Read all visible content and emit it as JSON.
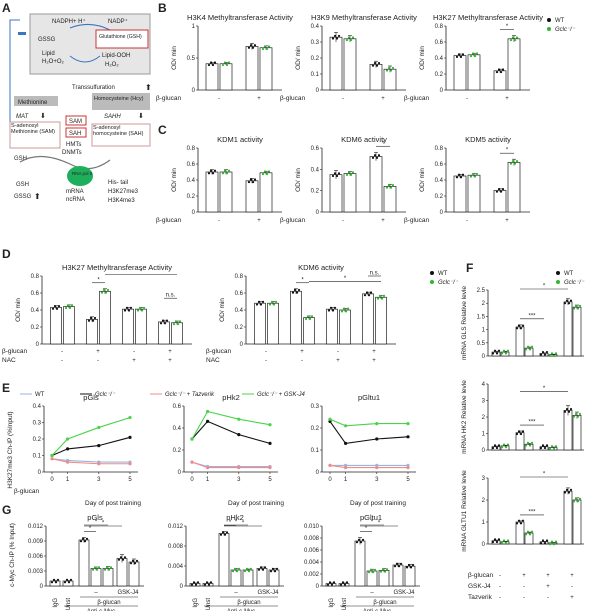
{
  "panel_labels": {
    "A": "A",
    "B": "B",
    "C": "C",
    "D": "D",
    "E": "E",
    "F": "F",
    "G": "G"
  },
  "common": {
    "odmin": "OD/ min",
    "bglucan": "β-glucan",
    "nac": "NAC",
    "ns": "n.s.",
    "star": "*",
    "star3": "***",
    "plus": "+",
    "minus": "-",
    "dash": "–"
  },
  "legend": {
    "wt": "WT",
    "gclc": "Gclc⁻/⁻"
  },
  "schematic": {
    "nadph": "NADPH+ H⁺",
    "nadp": "NADP⁺",
    "gssg": "GSSG",
    "gsh_full": "Glutathione (GSH)",
    "lipid": "Lipid",
    "h2o": "H₂O+O₂",
    "lipid_ooh": "Lipid-OOH",
    "h2o2": "H₂O₂",
    "transsulfuration": "Transsulfuration",
    "methionine": "Methionine",
    "homocysteine": "Homocysteine (Hcy)",
    "mat": "MAT",
    "sahh": "SAHH",
    "sam_box": "S-adenosyl Methionine (SAM)",
    "sah_box": "S-adenosyl homocysteine (SAH)",
    "sam": "SAM",
    "sah": "SAH",
    "hmts": "HMTs",
    "dnmts": "DNMTs",
    "gsh": "GSH",
    "rna": "RNA pol II",
    "mrna": "mRNA",
    "ncrna": "ncRNA",
    "his_tail": "His- tail",
    "h3k27": "H3K27me3",
    "h3k4": "H3K4me3"
  },
  "panel_e": {
    "legend": [
      "WT",
      "Gclc⁻/⁻",
      "Gclc⁻/⁻ + Tazverik",
      "Gclc⁻/⁻ + GSK-J4"
    ],
    "xlabel": "Day of post training",
    "ylabel": "H3K27me3 Ch-IP (%Input)"
  },
  "panel_f": {
    "rows": [
      "β-glucan",
      "GSK-J4",
      "Tazverik"
    ]
  },
  "panel_g": {
    "ylabel": "c-Myc Ch-IP (% Input)",
    "igg": "IgG",
    "unst": "Unst",
    "gskj4": "GSK-J4",
    "anti": "Anti-c-Myc"
  },
  "chart_data": [
    {
      "id": "B1",
      "type": "bar",
      "title": "H3K4 Methyltransferase Activity",
      "ylabel": "OD/ min",
      "ylim": [
        0,
        1.0
      ],
      "ticks": [
        0,
        0.5,
        1.0
      ],
      "categories": [
        "WT -",
        "Gclc⁻/⁻ -",
        "WT +",
        "Gclc⁻/⁻ +"
      ],
      "values": [
        0.41,
        0.41,
        0.68,
        0.66
      ],
      "errors": [
        0.02,
        0.02,
        0.05,
        0.03
      ],
      "xgroup": [
        "-",
        "+"
      ]
    },
    {
      "id": "B2",
      "type": "bar",
      "title": "H3K9 Methyltransferase Activity",
      "ylabel": "OD/ min",
      "ylim": [
        0,
        0.4
      ],
      "ticks": [
        0,
        0.1,
        0.2,
        0.3,
        0.4
      ],
      "categories": [
        "WT -",
        "Gclc⁻/⁻ -",
        "WT +",
        "Gclc⁻/⁻ +"
      ],
      "values": [
        0.33,
        0.32,
        0.16,
        0.13
      ],
      "errors": [
        0.03,
        0.02,
        0.02,
        0.02
      ],
      "xgroup": [
        "-",
        "+"
      ]
    },
    {
      "id": "B3",
      "type": "bar",
      "title": "H3K27 Methyltransferase Activity",
      "ylabel": "OD/ min",
      "ylim": [
        0,
        0.8
      ],
      "ticks": [
        0,
        0.2,
        0.4,
        0.6,
        0.8
      ],
      "categories": [
        "WT -",
        "Gclc⁻/⁻ -",
        "WT +",
        "Gclc⁻/⁻ +"
      ],
      "values": [
        0.43,
        0.44,
        0.24,
        0.64
      ],
      "errors": [
        0.02,
        0.02,
        0.02,
        0.04
      ],
      "xgroup": [
        "-",
        "+"
      ],
      "sig": [
        {
          "a": 2,
          "b": 3,
          "text": "*"
        }
      ]
    },
    {
      "id": "C1",
      "type": "bar",
      "title": "KDM1 activity",
      "ylabel": "OD/ min",
      "ylim": [
        0,
        0.8
      ],
      "ticks": [
        0,
        0.2,
        0.4,
        0.6,
        0.8
      ],
      "categories": [
        "WT -",
        "Gclc⁻/⁻ -",
        "WT +",
        "Gclc⁻/⁻ +"
      ],
      "values": [
        0.5,
        0.5,
        0.39,
        0.49
      ],
      "errors": [
        0.03,
        0.03,
        0.03,
        0.02
      ],
      "xgroup": [
        "-",
        "+"
      ]
    },
    {
      "id": "C2",
      "type": "bar",
      "title": "KDM6 activity",
      "ylabel": "OD/ min",
      "ylim": [
        0,
        0.6
      ],
      "ticks": [
        0,
        0.2,
        0.4,
        0.6
      ],
      "categories": [
        "WT -",
        "Gclc⁻/⁻ -",
        "WT +",
        "Gclc⁻/⁻ +"
      ],
      "values": [
        0.35,
        0.36,
        0.52,
        0.24
      ],
      "errors": [
        0.04,
        0.02,
        0.04,
        0.02
      ],
      "xgroup": [
        "-",
        "+"
      ],
      "sig": [
        {
          "a": 2,
          "b": 3,
          "text": "*"
        }
      ]
    },
    {
      "id": "C3",
      "type": "bar",
      "title": "KDM5 activity",
      "ylabel": "OD/ min",
      "ylim": [
        0,
        0.8
      ],
      "ticks": [
        0,
        0.2,
        0.4,
        0.6,
        0.8
      ],
      "categories": [
        "WT -",
        "Gclc⁻/⁻ -",
        "WT +",
        "Gclc⁻/⁻ +"
      ],
      "values": [
        0.45,
        0.46,
        0.27,
        0.62
      ],
      "errors": [
        0.02,
        0.02,
        0.02,
        0.04
      ],
      "xgroup": [
        "-",
        "+"
      ],
      "sig": [
        {
          "a": 2,
          "b": 3,
          "text": "*"
        }
      ]
    },
    {
      "id": "D1",
      "type": "bar",
      "title": "H3K27 Methyltransferase Activity",
      "ylabel": "OD/ min",
      "ylim": [
        0,
        0.8
      ],
      "ticks": [
        0,
        0.2,
        0.4,
        0.6,
        0.8
      ],
      "values": [
        0.43,
        0.44,
        0.29,
        0.62,
        0.41,
        0.41,
        0.26,
        0.25
      ],
      "errors": [
        0.02,
        0.02,
        0.03,
        0.03,
        0.02,
        0.02,
        0.02,
        0.02
      ],
      "bglucan": [
        "-",
        "+",
        "-",
        "+"
      ],
      "nac": [
        "-",
        "-",
        "+",
        "+"
      ],
      "sig": [
        {
          "a": 2,
          "b": 3,
          "text": "*"
        },
        {
          "a": 3,
          "b": 7,
          "text": "*"
        },
        {
          "a": 6,
          "b": 7,
          "text": "n.s."
        }
      ]
    },
    {
      "id": "D2",
      "type": "bar",
      "title": "KDM6 activity",
      "ylabel": "OD/ min",
      "ylim": [
        0,
        0.8
      ],
      "ticks": [
        0,
        0.2,
        0.4,
        0.6,
        0.8
      ],
      "values": [
        0.48,
        0.48,
        0.62,
        0.31,
        0.41,
        0.4,
        0.59,
        0.55
      ],
      "errors": [
        0.02,
        0.02,
        0.03,
        0.02,
        0.02,
        0.02,
        0.02,
        0.02
      ],
      "bglucan": [
        "-",
        "+",
        "-",
        "+"
      ],
      "nac": [
        "-",
        "-",
        "+",
        "+"
      ],
      "sig": [
        {
          "a": 2,
          "b": 3,
          "text": "*"
        },
        {
          "a": 3,
          "b": 7,
          "text": "*"
        },
        {
          "a": 6,
          "b": 7,
          "text": "n.s."
        }
      ]
    },
    {
      "id": "E1",
      "type": "line",
      "title": "pGls",
      "ylim": [
        0,
        0.4
      ],
      "ticks": [
        0,
        0.1,
        0.2,
        0.3,
        0.4
      ],
      "x": [
        "0",
        "1",
        "3",
        "5"
      ],
      "series": [
        {
          "name": "WT",
          "values": [
            0.08,
            0.07,
            0.06,
            0.06
          ]
        },
        {
          "name": "Gclc⁻/⁻",
          "values": [
            0.1,
            0.14,
            0.16,
            0.21
          ]
        },
        {
          "name": "Gclc⁻/⁻ + Tazverik",
          "values": [
            0.08,
            0.06,
            0.05,
            0.05
          ]
        },
        {
          "name": "Gclc⁻/⁻ + GSK-J4",
          "values": [
            0.1,
            0.2,
            0.27,
            0.33
          ]
        }
      ]
    },
    {
      "id": "E2",
      "type": "line",
      "title": "pHk2",
      "ylim": [
        0,
        0.6
      ],
      "ticks": [
        0,
        0.2,
        0.4,
        0.6
      ],
      "x": [
        "0",
        "1",
        "3",
        "5"
      ],
      "series": [
        {
          "name": "WT",
          "values": [
            0.09,
            0.05,
            0.05,
            0.05
          ]
        },
        {
          "name": "Gclc⁻/⁻",
          "values": [
            0.3,
            0.46,
            0.34,
            0.26
          ]
        },
        {
          "name": "Gclc⁻/⁻ + Tazverik",
          "values": [
            0.09,
            0.04,
            0.04,
            0.04
          ]
        },
        {
          "name": "Gclc⁻/⁻ + GSK-J4",
          "values": [
            0.3,
            0.55,
            0.48,
            0.43
          ]
        }
      ]
    },
    {
      "id": "E3",
      "type": "line",
      "title": "pGltu1",
      "ylim": [
        0,
        0.3
      ],
      "ticks": [
        0,
        0.1,
        0.2,
        0.3
      ],
      "x": [
        "0",
        "1",
        "3",
        "5"
      ],
      "series": [
        {
          "name": "WT",
          "values": [
            0.03,
            0.03,
            0.03,
            0.03
          ]
        },
        {
          "name": "Gclc⁻/⁻",
          "values": [
            0.23,
            0.13,
            0.15,
            0.16
          ]
        },
        {
          "name": "Gclc⁻/⁻ + Tazverik",
          "values": [
            0.03,
            0.02,
            0.02,
            0.02
          ]
        },
        {
          "name": "Gclc⁻/⁻ + GSK-J4",
          "values": [
            0.24,
            0.21,
            0.22,
            0.22
          ]
        }
      ]
    },
    {
      "id": "F1",
      "type": "bar",
      "title": "",
      "ylabel": "mRNA GLS Relative levle",
      "ylim": [
        0,
        2.5
      ],
      "ticks": [
        0,
        0.5,
        1.0,
        1.5,
        2.0,
        2.5
      ],
      "values": [
        0.15,
        0.15,
        1.1,
        0.3,
        0.1,
        0.05,
        2.05,
        1.85
      ],
      "errors": [
        0.03,
        0.03,
        0.08,
        0.04,
        0.02,
        0.02,
        0.12,
        0.08
      ],
      "sig": [
        {
          "a": 2,
          "b": 4,
          "text": "***"
        },
        {
          "a": 2,
          "b": 6,
          "text": "*"
        }
      ]
    },
    {
      "id": "F2",
      "type": "bar",
      "title": "",
      "ylabel": "mRNA HK2 Relative levle",
      "ylim": [
        0,
        4
      ],
      "ticks": [
        0,
        1,
        2,
        3,
        4
      ],
      "values": [
        0.2,
        0.25,
        1.05,
        0.35,
        0.2,
        0.15,
        2.4,
        2.1
      ],
      "errors": [
        0.04,
        0.04,
        0.1,
        0.05,
        0.03,
        0.03,
        0.3,
        0.2
      ],
      "sig": [
        {
          "a": 2,
          "b": 4,
          "text": "***"
        },
        {
          "a": 2,
          "b": 6,
          "text": "*"
        }
      ]
    },
    {
      "id": "F3",
      "type": "bar",
      "title": "",
      "ylabel": "mRNA GLTU1 Relative levle",
      "ylim": [
        0,
        3
      ],
      "ticks": [
        0,
        1,
        2,
        3
      ],
      "values": [
        0.15,
        0.1,
        1.0,
        0.5,
        0.1,
        0.05,
        2.4,
        2.0
      ],
      "errors": [
        0.03,
        0.02,
        0.05,
        0.04,
        0.02,
        0.02,
        0.15,
        0.1
      ],
      "sig": [
        {
          "a": 2,
          "b": 4,
          "text": "***"
        },
        {
          "a": 2,
          "b": 6,
          "text": "*"
        }
      ]
    },
    {
      "id": "G1",
      "type": "bar",
      "title": "pGls",
      "ylim": [
        0,
        0.012
      ],
      "ticks": [
        "0",
        "0.003",
        "0.006",
        "0.009",
        "0.012"
      ],
      "values": [
        0.001,
        0.001,
        0.0092,
        0.0035,
        0.0035,
        0.0055,
        0.0048
      ],
      "errors": [
        0.0001,
        0.0001,
        0.0005,
        0.0003,
        0.0004,
        0.0008,
        0.0006
      ],
      "sig": [
        {
          "a": 2,
          "b": 3,
          "text": "*"
        },
        {
          "a": 2,
          "b": 4,
          "text": "*"
        },
        {
          "a": 2,
          "b": 5,
          "text": "*"
        }
      ]
    },
    {
      "id": "G2",
      "type": "bar",
      "title": "pHk2",
      "ylim": [
        0,
        0.012
      ],
      "ticks": [
        "0",
        "0.004",
        "0.008",
        "0.012"
      ],
      "values": [
        0.0005,
        0.0005,
        0.0105,
        0.0032,
        0.0032,
        0.0035,
        0.0032
      ],
      "errors": [
        0.0001,
        0.0001,
        0.0004,
        0.0003,
        0.0002,
        0.0003,
        0.0003
      ],
      "sig": [
        {
          "a": 2,
          "b": 3,
          "text": "*"
        },
        {
          "a": 2,
          "b": 4,
          "text": "*"
        },
        {
          "a": 2,
          "b": 5,
          "text": "*"
        }
      ]
    },
    {
      "id": "G3",
      "type": "bar",
      "title": "pGltu1",
      "ylim": [
        0,
        0.01
      ],
      "ticks": [
        "0",
        "0.002",
        "0.004",
        "0.006",
        "0.008",
        "0.010"
      ],
      "values": [
        0.0004,
        0.0004,
        0.0075,
        0.0025,
        0.0026,
        0.0035,
        0.0033
      ],
      "errors": [
        0.0001,
        0.0001,
        0.0006,
        0.0003,
        0.0003,
        0.0003,
        0.0003
      ],
      "sig": [
        {
          "a": 2,
          "b": 3,
          "text": "*"
        },
        {
          "a": 2,
          "b": 4,
          "text": "*"
        },
        {
          "a": 2,
          "b": 5,
          "text": "*"
        }
      ]
    }
  ],
  "colors": {
    "wt": "#111111",
    "gclc": "#2fb82f",
    "taz": "#f08a8a",
    "gsk": "#4ad34a",
    "wt_line": "#9ab6de",
    "red": "#d33",
    "blue": "#3a76c4",
    "rna": "#1fae5b"
  }
}
